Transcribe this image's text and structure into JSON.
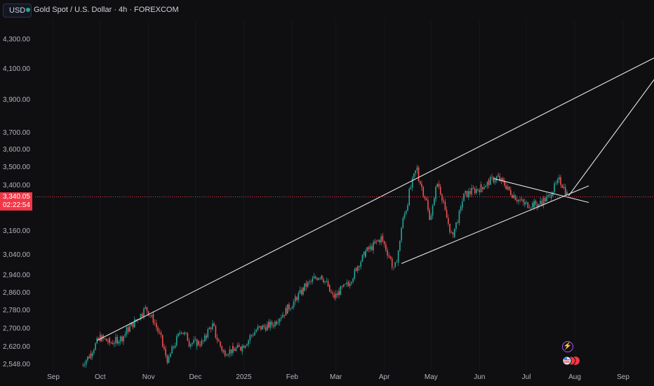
{
  "header": {
    "currency_button": "USD",
    "symbol_title": "Gold Spot / U.S. Dollar · 4h · FOREXCOM"
  },
  "price_badge": {
    "price": "3,340.05",
    "countdown": "02:22:54"
  },
  "y_axis_labels": [
    "4,300.00",
    "4,100.00",
    "3,900.00",
    "3,700.00",
    "3,600.00",
    "3,500.00",
    "3,400.00",
    "3,160.00",
    "3,040.00",
    "2,940.00",
    "2,860.00",
    "2,780.00",
    "2,700.00",
    "2,620.00",
    "2,548.00"
  ],
  "x_axis_labels": [
    "Sep",
    "Oct",
    "Nov",
    "Dec",
    "2025",
    "Feb",
    "Mar",
    "Apr",
    "May",
    "Jun",
    "Jul",
    "Aug",
    "Sep"
  ],
  "icons": {
    "event": "lightning-icon",
    "flag": "us-flag-icon"
  },
  "colors": {
    "up": "#26a69a",
    "down": "#ef5350",
    "background": "#0f0f12",
    "lines": "#e6e6e6",
    "current_price": "#f23645"
  },
  "chart_data": {
    "type": "candlestick",
    "title": "Gold Spot / U.S. Dollar · 4h · FOREXCOM",
    "xlabel": "",
    "ylabel": "",
    "x_ticks": [
      "Sep",
      "Oct",
      "Nov",
      "Dec",
      "2025",
      "Feb",
      "Mar",
      "Apr",
      "May",
      "Jun",
      "Jul",
      "Aug",
      "Sep"
    ],
    "y_ticks": [
      4300,
      4100,
      3900,
      3700,
      3600,
      3500,
      3400,
      3160,
      3040,
      2940,
      2860,
      2780,
      2700,
      2620,
      2548
    ],
    "y_scale": "log",
    "last_price": 3340.05,
    "price_path": [
      [
        "2024-09-20",
        2548
      ],
      [
        "2024-09-26",
        2600
      ],
      [
        "2024-10-01",
        2665
      ],
      [
        "2024-10-08",
        2640
      ],
      [
        "2024-10-15",
        2660
      ],
      [
        "2024-10-22",
        2720
      ],
      [
        "2024-10-31",
        2790
      ],
      [
        "2024-11-05",
        2740
      ],
      [
        "2024-11-14",
        2560
      ],
      [
        "2024-11-22",
        2700
      ],
      [
        "2024-11-28",
        2640
      ],
      [
        "2024-12-06",
        2640
      ],
      [
        "2024-12-12",
        2720
      ],
      [
        "2024-12-19",
        2600
      ],
      [
        "2024-12-31",
        2620
      ],
      [
        "2025-01-10",
        2700
      ],
      [
        "2025-01-20",
        2720
      ],
      [
        "2025-01-31",
        2800
      ],
      [
        "2025-02-11",
        2900
      ],
      [
        "2025-02-20",
        2950
      ],
      [
        "2025-02-28",
        2840
      ],
      [
        "2025-03-10",
        2910
      ],
      [
        "2025-03-20",
        3050
      ],
      [
        "2025-03-31",
        3130
      ],
      [
        "2025-04-08",
        2960
      ],
      [
        "2025-04-14",
        3230
      ],
      [
        "2025-04-22",
        3500
      ],
      [
        "2025-05-01",
        3230
      ],
      [
        "2025-05-06",
        3420
      ],
      [
        "2025-05-15",
        3120
      ],
      [
        "2025-05-23",
        3350
      ],
      [
        "2025-06-02",
        3390
      ],
      [
        "2025-06-13",
        3450
      ],
      [
        "2025-06-23",
        3350
      ],
      [
        "2025-06-30",
        3300
      ],
      [
        "2025-07-09",
        3300
      ],
      [
        "2025-07-16",
        3340
      ],
      [
        "2025-07-23",
        3440
      ],
      [
        "2025-07-28",
        3340
      ]
    ],
    "trendlines": [
      {
        "from": [
          "2024-09-29",
          2650
        ],
        "to": [
          "2025-09-25",
          4200
        ]
      },
      {
        "from": [
          "2025-04-12",
          3000
        ],
        "to": [
          "2025-08-10",
          3400
        ]
      },
      {
        "from": [
          "2025-06-10",
          3440
        ],
        "to": [
          "2025-08-10",
          3310
        ]
      },
      {
        "from": [
          "2025-07-28",
          3345
        ],
        "to": [
          "2025-09-27",
          4120
        ]
      }
    ]
  }
}
